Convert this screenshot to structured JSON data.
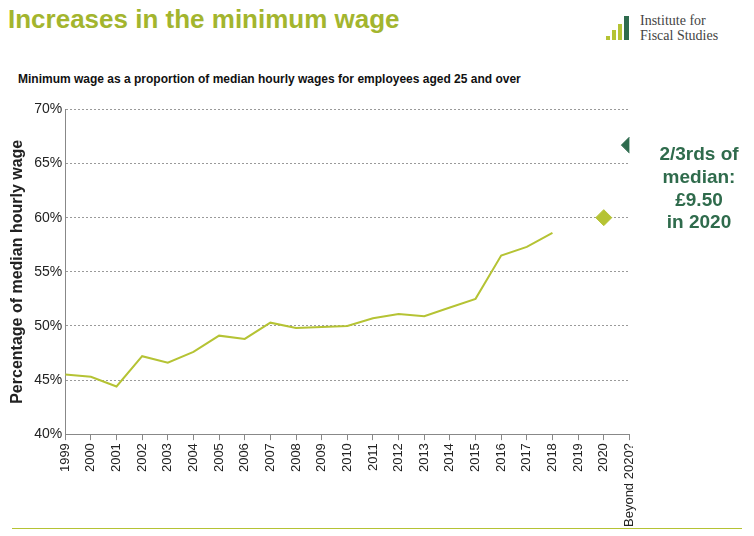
{
  "chart_data": {
    "type": "line",
    "title": "Increases in the minimum wage",
    "subtitle": "Minimum wage as a proportion of median hourly wages for employees aged 25 and over",
    "logo": [
      "Institute for",
      "Fiscal Studies"
    ],
    "y_label": "Percentage of median hourly wage",
    "annotation": [
      "2/3rds of",
      "median:",
      "£9.50",
      "in 2020"
    ],
    "categories": [
      "1999",
      "2000",
      "2001",
      "2002",
      "2003",
      "2004",
      "2005",
      "2006",
      "2007",
      "2008",
      "2009",
      "2010",
      "2011",
      "2012",
      "2013",
      "2014",
      "2015",
      "2016",
      "2017",
      "2018",
      "2019",
      "2020",
      "Beyond 2020?"
    ],
    "series": [
      {
        "type": "line",
        "color": "#b5c334",
        "line_style": "solid",
        "values": [
          45.5,
          45.3,
          44.4,
          47.2,
          46.6,
          47.6,
          49.1,
          48.8,
          50.3,
          49.8,
          49.9,
          50.0,
          50.7,
          51.1,
          50.9,
          51.7,
          52.5,
          56.5,
          57.3,
          58.6,
          null,
          null,
          null
        ]
      },
      {
        "type": "scatter",
        "marker": "diamond",
        "color": "#b5c334",
        "values": [
          null,
          null,
          null,
          null,
          null,
          null,
          null,
          null,
          null,
          null,
          null,
          null,
          null,
          null,
          null,
          null,
          null,
          null,
          null,
          null,
          null,
          60,
          null
        ]
      },
      {
        "type": "scatter",
        "marker": "diamond",
        "color": "#2e6b4e",
        "values": [
          null,
          null,
          null,
          null,
          null,
          null,
          null,
          null,
          null,
          null,
          null,
          null,
          null,
          null,
          null,
          null,
          null,
          null,
          null,
          null,
          null,
          null,
          66.7
        ]
      }
    ],
    "ylim": [
      40,
      70
    ],
    "yticks": [
      {
        "value": 40,
        "label": "40%"
      },
      {
        "value": 45,
        "label": "45%"
      },
      {
        "value": 50,
        "label": "50%"
      },
      {
        "value": 55,
        "label": "55%"
      },
      {
        "value": 60,
        "label": "60%"
      },
      {
        "value": 65,
        "label": "65%"
      },
      {
        "value": 70,
        "label": "70%"
      }
    ],
    "grid": true
  }
}
